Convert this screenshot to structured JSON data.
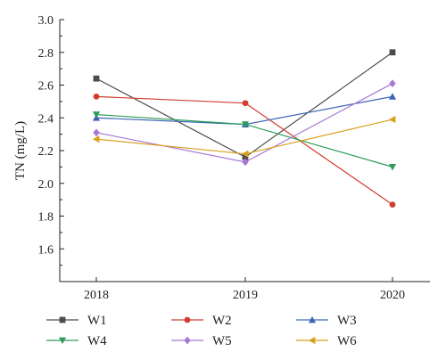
{
  "chart_data": {
    "type": "line",
    "title": "",
    "xlabel": "",
    "ylabel": "TN (mg/L)",
    "categories": [
      "2018",
      "2019",
      "2020"
    ],
    "ylim": [
      1.4,
      3.0
    ],
    "y_ticks": [
      "1.6",
      "1.8",
      "2.0",
      "2.2",
      "2.4",
      "2.6",
      "2.8",
      "3.0"
    ],
    "grid": false,
    "legend_position": "bottom",
    "series": [
      {
        "name": "W1",
        "values": [
          2.64,
          2.16,
          2.8
        ],
        "color": "#4d4d4d",
        "marker": "square"
      },
      {
        "name": "W2",
        "values": [
          2.53,
          2.49,
          1.87
        ],
        "color": "#d23c2d",
        "marker": "circle"
      },
      {
        "name": "W3",
        "values": [
          2.4,
          2.36,
          2.53
        ],
        "color": "#3d66b6",
        "marker": "triangle-up"
      },
      {
        "name": "W4",
        "values": [
          2.42,
          2.36,
          2.1
        ],
        "color": "#2e9d58",
        "marker": "triangle-down"
      },
      {
        "name": "W5",
        "values": [
          2.31,
          2.13,
          2.61
        ],
        "color": "#a978d6",
        "marker": "diamond"
      },
      {
        "name": "W6",
        "values": [
          2.27,
          2.18,
          2.39
        ],
        "color": "#d9a11f",
        "marker": "triangle-left"
      }
    ]
  }
}
